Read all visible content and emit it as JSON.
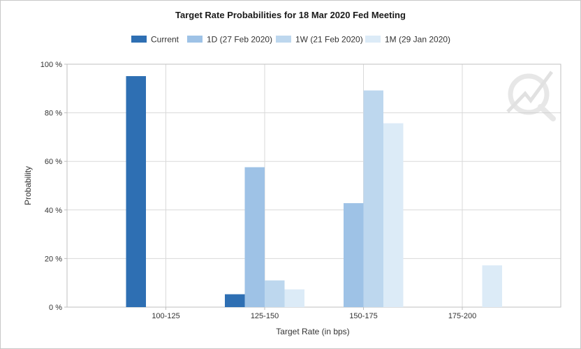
{
  "chart_data": {
    "type": "bar",
    "title": "Target Rate Probabilities for 18 Mar 2020 Fed Meeting",
    "xlabel": "Target Rate (in bps)",
    "ylabel": "Probability",
    "ylim": [
      0,
      100
    ],
    "yticks": [
      "0 %",
      "20 %",
      "40 %",
      "60 %",
      "80 %",
      "100 %"
    ],
    "ytick_values": [
      0,
      20,
      40,
      60,
      80,
      100
    ],
    "categories": [
      "100-125",
      "125-150",
      "150-175",
      "175-200"
    ],
    "grid": true,
    "legend_position": "top",
    "series": [
      {
        "name": "Current",
        "color": "#2e6fb3",
        "values": [
          95.1,
          5.3,
          0,
          0
        ]
      },
      {
        "name": "1D (27 Feb 2020)",
        "color": "#9ec2e6",
        "values": [
          0,
          57.6,
          42.8,
          0
        ]
      },
      {
        "name": "1W (21 Feb 2020)",
        "color": "#bdd7ee",
        "values": [
          0,
          11.0,
          89.2,
          0
        ]
      },
      {
        "name": "1M (29 Jan 2020)",
        "color": "#dcebf7",
        "values": [
          0,
          7.3,
          75.7,
          17.2
        ]
      }
    ]
  }
}
